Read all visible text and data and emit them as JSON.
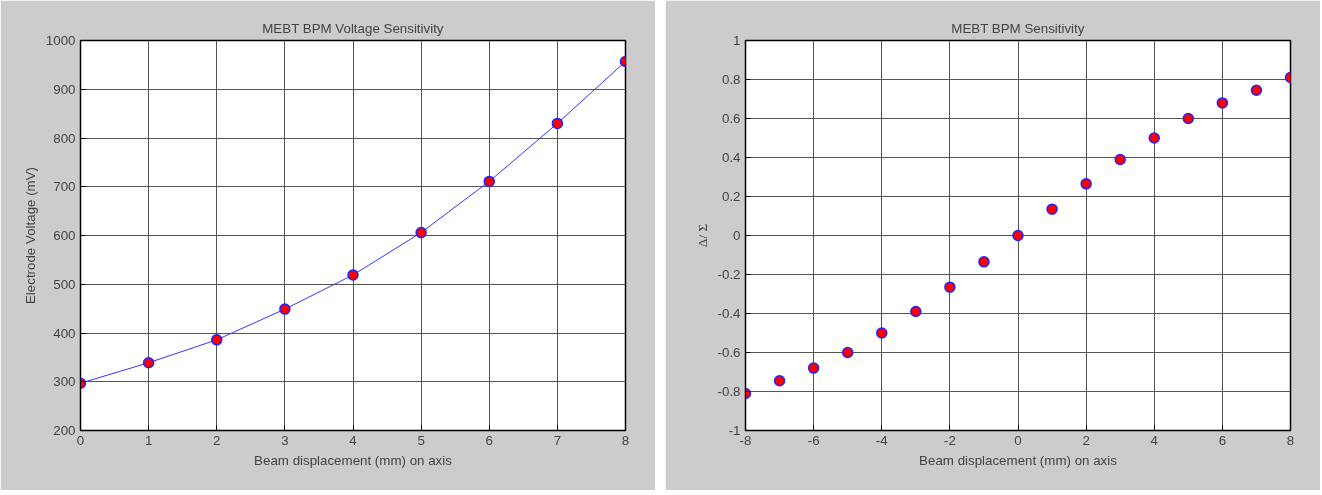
{
  "chart_data": [
    {
      "type": "line",
      "title": "MEBT BPM Voltage Sensitivity",
      "xlabel": "Beam displacement (mm) on axis",
      "ylabel": "Electrode Voltage (mV)",
      "x": [
        0,
        1,
        2,
        3,
        4,
        5,
        6,
        7,
        8
      ],
      "series": [
        {
          "color": "#ff0000",
          "values": [
            297,
            339,
            386,
            449,
            519,
            606,
            711,
            830,
            957
          ]
        }
      ],
      "xlim": [
        0,
        8
      ],
      "xticks": [
        0,
        1,
        2,
        3,
        4,
        5,
        6,
        7,
        8
      ],
      "ylim": [
        200,
        1000
      ],
      "yticks": [
        200,
        300,
        400,
        500,
        600,
        700,
        800,
        900,
        1000
      ],
      "grid": true,
      "marker": "circle",
      "line_style": "solid"
    },
    {
      "type": "scatter",
      "title": "MEBT BPM Sensitivity",
      "xlabel": "Beam displacement (mm) on axis",
      "ylabel": "Δ/ Σ",
      "x": [
        -8,
        -7,
        -6,
        -5,
        -4,
        -3,
        -2,
        -1,
        0,
        1,
        2,
        3,
        4,
        5,
        6,
        7,
        8
      ],
      "series": [
        {
          "color": "#ff0000",
          "values": [
            -0.81,
            -0.745,
            -0.68,
            -0.6,
            -0.5,
            -0.39,
            -0.265,
            -0.135,
            0,
            0.135,
            0.265,
            0.39,
            0.5,
            0.6,
            0.68,
            0.745,
            0.81
          ]
        }
      ],
      "xlim": [
        -8,
        8
      ],
      "xticks": [
        -8,
        -6,
        -4,
        -2,
        0,
        2,
        4,
        6,
        8
      ],
      "ylim": [
        -1,
        1
      ],
      "yticks": [
        -1,
        -0.8,
        -0.6,
        -0.4,
        -0.2,
        0,
        0.2,
        0.4,
        0.6,
        0.8,
        1
      ],
      "grid": true,
      "marker": "circle"
    }
  ]
}
